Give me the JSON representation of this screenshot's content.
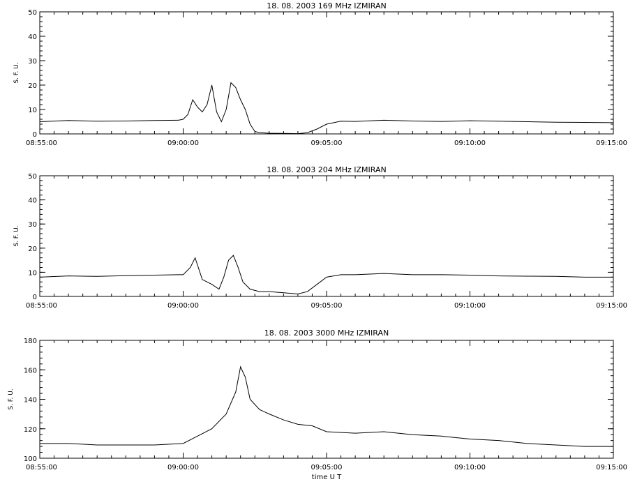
{
  "chart_data": [
    {
      "type": "line",
      "title": "18.  08.  2003    169  MHz    IZMIRAN",
      "ylabel": "S. F. U.",
      "xlabel": "",
      "ylim": [
        0,
        50
      ],
      "yticks": [
        0,
        10,
        20,
        30,
        40,
        50
      ],
      "xlim": [
        "08:55:00",
        "09:15:00"
      ],
      "xticks": [
        "08:55:00",
        "09:00:00",
        "09:05:00",
        "09:10:00",
        "09:15:00"
      ],
      "series": [
        {
          "x": [
            "08:55:00",
            "08:56:00",
            "08:57:00",
            "08:58:00",
            "08:59:00",
            "08:59:50",
            "09:00:00",
            "09:00:10",
            "09:00:20",
            "09:00:30",
            "09:00:40",
            "09:00:50",
            "09:01:00",
            "09:01:10",
            "09:01:20",
            "09:01:30",
            "09:01:40",
            "09:01:50",
            "09:02:00",
            "09:02:10",
            "09:02:20",
            "09:02:30",
            "09:02:40",
            "09:03:00",
            "09:03:30",
            "09:04:00",
            "09:04:20",
            "09:04:40",
            "09:05:00",
            "09:05:30",
            "09:06:00",
            "09:07:00",
            "09:08:00",
            "09:09:00",
            "09:10:00",
            "09:11:00",
            "09:12:00",
            "09:13:00",
            "09:14:00",
            "09:15:00"
          ],
          "values": [
            5,
            5.5,
            5.2,
            5.3,
            5.5,
            5.6,
            6,
            8,
            14,
            11,
            9,
            12,
            20,
            9,
            5,
            10,
            21,
            19,
            14,
            10,
            4,
            1,
            0.5,
            0.3,
            0.2,
            0.1,
            0.5,
            2,
            4,
            5.2,
            5.1,
            5.6,
            5.3,
            5.1,
            5.4,
            5.2,
            5,
            4.8,
            4.7,
            4.6
          ]
        }
      ]
    },
    {
      "type": "line",
      "title": "18.  08.  2003    204  MHz    IZMIRAN",
      "ylabel": "S. F. U.",
      "xlabel": "",
      "ylim": [
        0,
        50
      ],
      "yticks": [
        0,
        10,
        20,
        30,
        40,
        50
      ],
      "xlim": [
        "08:55:00",
        "09:15:00"
      ],
      "xticks": [
        "08:55:00",
        "09:00:00",
        "09:05:00",
        "09:10:00",
        "09:15:00"
      ],
      "series": [
        {
          "x": [
            "08:55:00",
            "08:56:00",
            "08:57:00",
            "08:58:00",
            "08:59:00",
            "08:59:50",
            "09:00:00",
            "09:00:15",
            "09:00:25",
            "09:00:40",
            "09:01:00",
            "09:01:15",
            "09:01:25",
            "09:01:35",
            "09:01:45",
            "09:01:55",
            "09:02:05",
            "09:02:20",
            "09:02:40",
            "09:03:00",
            "09:03:30",
            "09:04:00",
            "09:04:20",
            "09:04:40",
            "09:05:00",
            "09:05:30",
            "09:06:00",
            "09:07:00",
            "09:08:00",
            "09:09:00",
            "09:10:00",
            "09:11:00",
            "09:12:00",
            "09:13:00",
            "09:14:00",
            "09:15:00"
          ],
          "values": [
            8,
            8.5,
            8.3,
            8.6,
            8.8,
            9,
            9,
            12,
            16,
            7,
            5,
            3,
            8,
            15,
            17,
            12,
            6,
            3,
            2,
            2,
            1.5,
            1,
            2,
            5,
            8,
            9,
            9,
            9.5,
            9,
            9,
            8.8,
            8.5,
            8.4,
            8.3,
            8,
            8
          ]
        }
      ]
    },
    {
      "type": "line",
      "title": "18.  08.  2003    3000  MHz    IZMIRAN",
      "ylabel": "S. F. U.",
      "xlabel": "time  U T",
      "ylim": [
        100,
        180
      ],
      "yticks": [
        100,
        120,
        140,
        160,
        180
      ],
      "xlim": [
        "08:55:00",
        "09:15:00"
      ],
      "xticks": [
        "08:55:00",
        "09:00:00",
        "09:05:00",
        "09:10:00",
        "09:15:00"
      ],
      "series": [
        {
          "x": [
            "08:55:00",
            "08:56:00",
            "08:57:00",
            "08:58:00",
            "08:59:00",
            "09:00:00",
            "09:00:30",
            "09:01:00",
            "09:01:30",
            "09:01:50",
            "09:02:00",
            "09:02:10",
            "09:02:20",
            "09:02:40",
            "09:03:00",
            "09:03:30",
            "09:04:00",
            "09:04:30",
            "09:05:00",
            "09:06:00",
            "09:07:00",
            "09:08:00",
            "09:09:00",
            "09:10:00",
            "09:11:00",
            "09:12:00",
            "09:13:00",
            "09:14:00",
            "09:15:00"
          ],
          "values": [
            110,
            110,
            109,
            109,
            109,
            110,
            115,
            120,
            130,
            145,
            162,
            155,
            140,
            133,
            130,
            126,
            123,
            122,
            118,
            117,
            118,
            116,
            115,
            113,
            112,
            110,
            109,
            108,
            108
          ]
        }
      ]
    }
  ]
}
